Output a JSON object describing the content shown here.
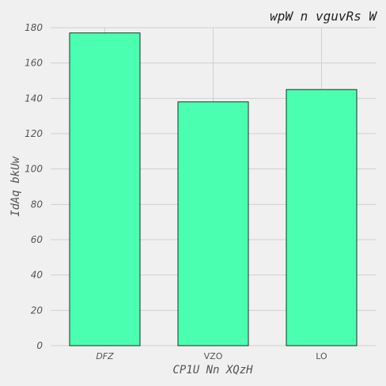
{
  "chart_data": {
    "type": "bar",
    "title": "wpW n vguvRs W",
    "xlabel": "CP1U Nn XQzH",
    "ylabel": "IdAq bkUw",
    "categories": [
      "DFZ",
      "VZO",
      "LO"
    ],
    "values": [
      177,
      138,
      145
    ],
    "ylim": [
      0,
      180
    ],
    "yticks": [
      0,
      20,
      40,
      60,
      80,
      100,
      120,
      140,
      160,
      180
    ],
    "grid": true,
    "bar_color": "#4bffb0",
    "bar_edge_color": "#000000",
    "background_color": "#f0f0f0",
    "grid_color": "#d0d0d0"
  }
}
